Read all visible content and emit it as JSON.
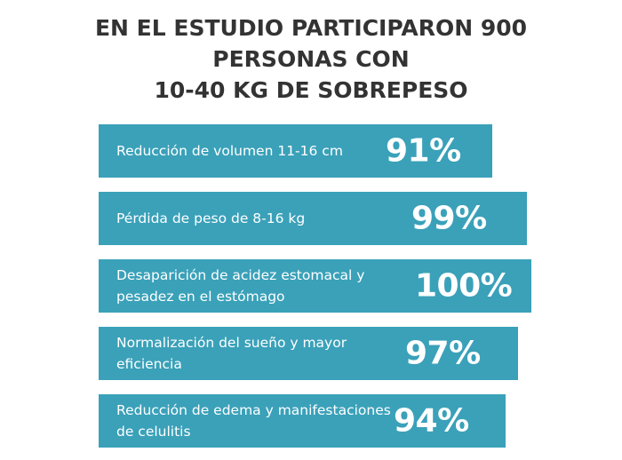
{
  "chart_data": {
    "type": "bar",
    "orientation": "horizontal",
    "title_lines": [
      "EN EL ESTUDIO PARTICIPARON 900",
      "PERSONAS CON",
      "10-40 KG DE SOBREPESO"
    ],
    "categories": [
      "Reducción de volumen 11-16 cm",
      "Pérdida de peso de 8-16 kg",
      "Desaparición de acidez estomacal y pesadez en el estómago",
      "Normalización del sueño y mayor eficiencia",
      "Reducción de edema y manifestaciones de celulitis"
    ],
    "category_lines": [
      [
        "Reducción de volumen 11-16 cm"
      ],
      [
        "Pérdida de peso de 8-16 kg"
      ],
      [
        "Desaparición de acidez estomacal y",
        "pesadez en el estómago"
      ],
      [
        "Normalización del sueño y mayor",
        "eficiencia"
      ],
      [
        "Reducción de edema y manifestaciones",
        "de celulitis"
      ]
    ],
    "values": [
      91,
      99,
      100,
      97,
      94
    ],
    "value_labels": [
      "91%",
      "99%",
      "100%",
      "97%",
      "94%"
    ],
    "unit": "%",
    "xlim": [
      0,
      100
    ],
    "bar_color": "#3aa1b9",
    "text_color": "#ffffff",
    "title_color": "#333333",
    "grid": false,
    "legend": "none"
  }
}
